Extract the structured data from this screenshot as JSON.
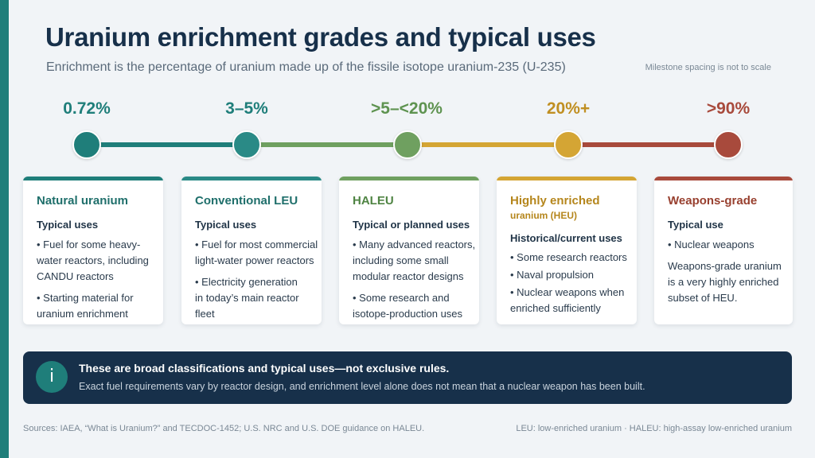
{
  "title": "Uranium enrichment grades and typical uses",
  "subtitle": "Enrichment is the percentage of uranium made up of the fissile isotope uranium-235 (U-235)",
  "note": "Milestone spacing is not to scale",
  "colors": {
    "teal_dark": "#1f7e7a",
    "teal": "#2a8a86",
    "green": "#6fa060",
    "gold": "#d4a534",
    "red": "#a84a3c",
    "navy": "#17304a"
  },
  "milestones": [
    {
      "pct": "0.72%",
      "title": "Natural uranium",
      "sub": "Typical uses",
      "items": [
        "• Fuel for some heavy-",
        "water reactors, including",
        "CANDU reactors",
        "• Starting material for",
        "uranium enrichment"
      ]
    },
    {
      "pct": "3–5%",
      "title": "Conventional LEU",
      "sub": "Typical uses",
      "items": [
        "• Fuel for most commercial",
        "light-water power reactors",
        "• Electricity generation",
        "in today’s main reactor",
        "fleet"
      ]
    },
    {
      "pct": ">5–<20%",
      "title": "HALEU",
      "sub": "Typical or planned uses",
      "items": [
        "• Many advanced reactors,",
        "including some small",
        "modular reactor designs",
        "• Some research and",
        "isotope-production uses"
      ]
    },
    {
      "pct": "20%+",
      "title": "Highly enriched",
      "title2": "uranium (HEU)",
      "sub": "Historical/current uses",
      "items": [
        "• Some research reactors",
        "• Naval propulsion",
        "• Nuclear weapons when",
        "enriched sufficiently"
      ]
    },
    {
      "pct": ">90%",
      "title": "Weapons-grade",
      "sub": "Typical use",
      "items": [
        "• Nuclear weapons",
        "Weapons-grade uranium",
        "is a very highly enriched",
        "subset of HEU."
      ]
    }
  ],
  "info": {
    "icon": "i",
    "icon_name": "info-icon",
    "heading": "These are broad classifications and typical uses—not exclusive rules.",
    "body": "Exact fuel requirements vary by reactor design, and enrichment level alone does not mean that a nuclear weapon has been built."
  },
  "sources": "Sources: IAEA, “What is Uranium?” and TECDOC-1452; U.S. NRC and U.S. DOE guidance on HALEU.",
  "abbreviations": "LEU: low-enriched uranium · HALEU: high-assay low-enriched uranium"
}
